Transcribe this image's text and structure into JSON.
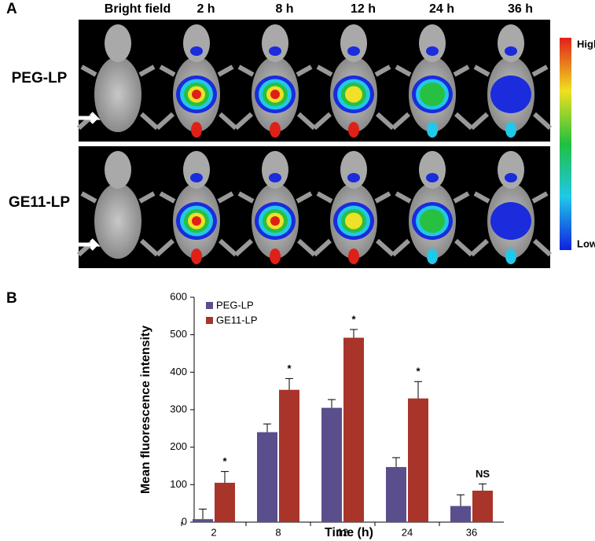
{
  "panel_a": {
    "label": "A",
    "columns": [
      "Bright field",
      "2 h",
      "8 h",
      "12 h",
      "24 h",
      "36 h"
    ],
    "rows": [
      "PEG-LP",
      "GE11-LP"
    ],
    "scale_high": "High",
    "scale_low": "Low"
  },
  "chart_data": {
    "type": "bar",
    "panel_label": "B",
    "x_label": "Time (h)",
    "y_label": "Mean fluorescence intensity",
    "categories": [
      "2",
      "8",
      "12",
      "24",
      "36"
    ],
    "series": [
      {
        "name": "PEG-LP",
        "color": "#5b4e8c",
        "values": [
          8,
          240,
          305,
          147,
          43
        ],
        "errors": [
          27,
          22,
          22,
          25,
          30
        ]
      },
      {
        "name": "GE11-LP",
        "color": "#a8342a",
        "values": [
          105,
          353,
          492,
          330,
          84
        ],
        "errors": [
          30,
          30,
          22,
          45,
          18
        ]
      }
    ],
    "annotations": [
      "*",
      "*",
      "*",
      "*",
      "NS"
    ],
    "ylim": [
      0,
      600
    ],
    "yticks": [
      0,
      100,
      200,
      300,
      400,
      500,
      600
    ],
    "legend": "upper left"
  }
}
